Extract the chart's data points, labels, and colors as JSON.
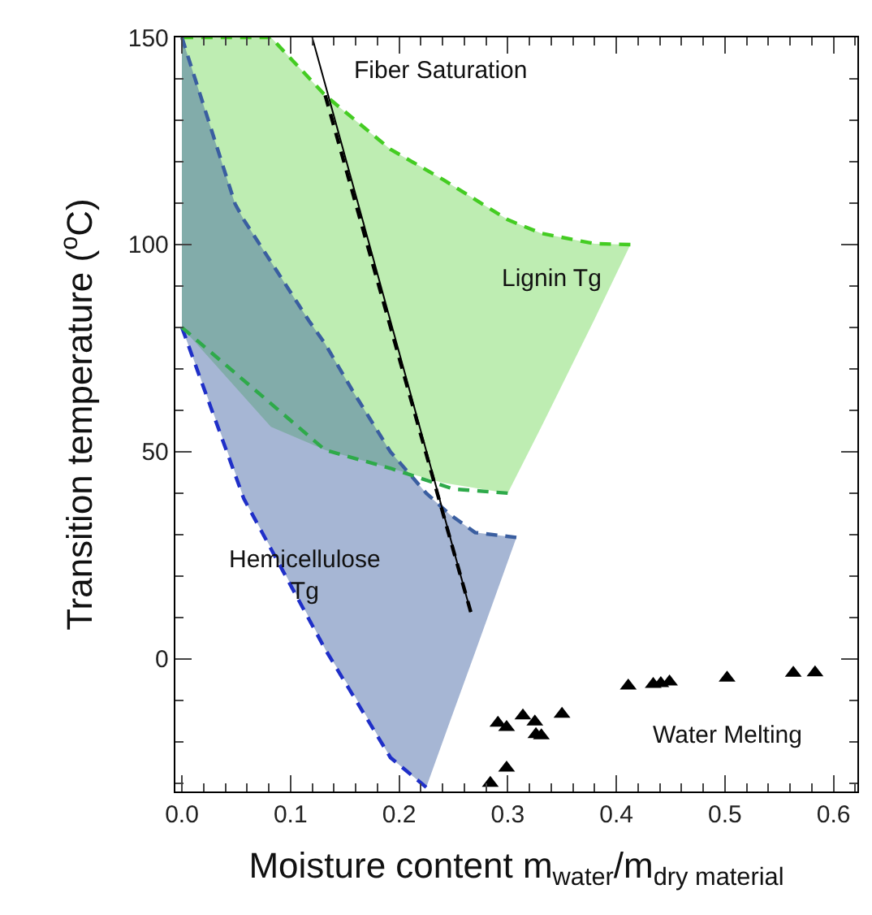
{
  "chart_data": {
    "type": "line",
    "xlabel": "Moisture content m$_{water}$/m$_{dry material}$",
    "ylabel": "Transition temperature ($^{o}$C)",
    "xlim": [
      -0.006,
      0.622
    ],
    "ylim": [
      -32,
      150
    ],
    "xticks": [
      {
        "value": 0,
        "label": "0.0"
      },
      {
        "value": 0.1,
        "label": "0.1"
      },
      {
        "value": 0.2,
        "label": "0.2"
      },
      {
        "value": 0.3,
        "label": "0.3"
      },
      {
        "value": 0.4,
        "label": "0.4"
      },
      {
        "value": 0.5,
        "label": "0.5"
      },
      {
        "value": 0.6,
        "label": "0.6"
      }
    ],
    "yticks": [
      0,
      50,
      100,
      150
    ],
    "series": [
      {
        "line_style": "dashed",
        "color": "#44cc22",
        "x": [
          0,
          0.082,
          0.132,
          0.192,
          0.241,
          0.3,
          0.331,
          0.38,
          0.413
        ],
        "values": [
          150,
          150,
          136,
          123,
          115.6,
          106,
          102.7,
          100.2,
          100
        ],
        "lower": [
          80,
          56,
          50.4,
          46,
          42.5,
          40,
          56,
          82,
          100
        ],
        "upper": [
          150,
          150,
          136,
          123,
          115.6,
          106,
          102.7,
          100.2,
          100
        ]
      },
      {
        "line_style": "dashed",
        "color": "#3a5ea0",
        "x": [
          0,
          0.049,
          0.057,
          0.117,
          0.132,
          0.157,
          0.192,
          0.225,
          0.247,
          0.27,
          0.308
        ],
        "values": [
          150,
          109.8,
          106,
          81.6,
          76,
          64.8,
          50,
          40,
          34.8,
          30.5,
          29.3
        ],
        "lower": [
          80,
          45,
          38.7,
          10,
          2.3,
          -8,
          -23.8,
          -31,
          -15,
          1.6,
          29.3
        ],
        "upper": [
          150,
          109.8,
          106,
          81.6,
          76,
          64.8,
          50,
          40,
          34.8,
          30.5,
          29.3
        ]
      },
      {
        "line_style": "dashed",
        "color": "#1f2fc8",
        "x": [
          0.225,
          0.192,
          0.132,
          0.057,
          0
        ],
        "values": [
          -31,
          -23.8,
          2.3,
          38.7,
          80
        ]
      },
      {
        "line_style": "dashed",
        "color": "#2eaa4a",
        "x": [
          0.3,
          0.25,
          0.192,
          0.132,
          0
        ],
        "values": [
          40,
          41,
          46,
          50.4,
          80
        ]
      },
      {
        "line_style": "solid",
        "color": "#000000",
        "x": [
          0.12,
          0.266
        ],
        "values": [
          150,
          11.3
        ]
      },
      {
        "line_style": "dashed",
        "color": "#000000",
        "x": [
          0.132,
          0.266
        ],
        "values": [
          136,
          11.3
        ]
      },
      {
        "type": "scatter",
        "marker": "triangle",
        "color": "#000000",
        "x": [
          0.284,
          0.291,
          0.299,
          0.299,
          0.314,
          0.325,
          0.326,
          0.331,
          0.35,
          0.411,
          0.434,
          0.441,
          0.449,
          0.502,
          0.563,
          0.583
        ],
        "values": [
          -30,
          -15.5,
          -16.5,
          -26.3,
          -13.7,
          -15.2,
          -18.2,
          -18.5,
          -13.3,
          -6.5,
          -6.1,
          -5.9,
          -5.5,
          -4.6,
          -3.4,
          -3.3
        ]
      }
    ],
    "annotations": [
      "Fiber Saturation",
      "Lignin Tg",
      "Hemicellulose\nTg",
      "Water Melting"
    ]
  }
}
